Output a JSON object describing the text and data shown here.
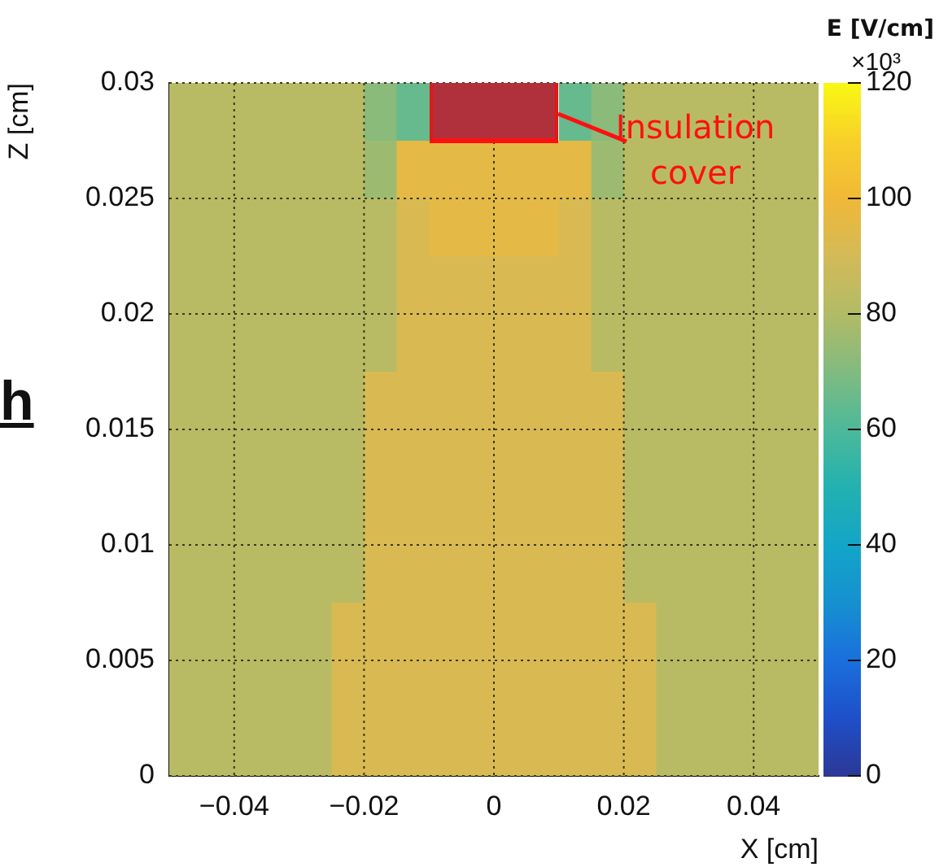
{
  "chart_data": {
    "type": "heatmap",
    "xlabel": "X [cm]",
    "ylabel": "Z [cm]",
    "clabel": "E [V/cm]",
    "x": [
      -0.0475,
      -0.0425,
      -0.0375,
      -0.0325,
      -0.0275,
      -0.0225,
      -0.0175,
      -0.0125,
      -0.0075,
      -0.0025,
      0.0025,
      0.0075,
      0.0125,
      0.0175,
      0.0225,
      0.0275,
      0.0325,
      0.0375,
      0.0425,
      0.0475
    ],
    "y": [
      0.02875,
      0.02625,
      0.02375,
      0.02125,
      0.01875,
      0.01625,
      0.01375,
      0.01125,
      0.00875,
      0.00625,
      0.00375,
      0.00125
    ],
    "cells": [
      [
        82,
        82,
        82,
        82,
        82,
        82,
        72,
        65,
        null,
        null,
        null,
        null,
        65,
        72,
        82,
        82,
        82,
        82,
        82,
        82
      ],
      [
        82,
        82,
        82,
        82,
        82,
        82,
        76,
        96,
        96,
        96,
        96,
        96,
        96,
        76,
        82,
        82,
        82,
        82,
        82,
        82
      ],
      [
        82,
        82,
        82,
        82,
        82,
        82,
        82,
        92,
        96,
        96,
        96,
        96,
        92,
        82,
        82,
        82,
        82,
        82,
        82,
        82
      ],
      [
        82,
        82,
        82,
        82,
        82,
        82,
        82,
        92,
        92,
        92,
        92,
        92,
        92,
        82,
        82,
        82,
        82,
        82,
        82,
        82
      ],
      [
        82,
        82,
        82,
        82,
        82,
        82,
        82,
        92,
        92,
        92,
        92,
        92,
        92,
        82,
        82,
        82,
        82,
        82,
        82,
        82
      ],
      [
        82,
        82,
        82,
        82,
        82,
        82,
        92,
        92,
        92,
        92,
        92,
        92,
        92,
        92,
        82,
        82,
        82,
        82,
        82,
        82
      ],
      [
        82,
        82,
        82,
        82,
        82,
        82,
        92,
        92,
        92,
        92,
        92,
        92,
        92,
        92,
        82,
        82,
        82,
        82,
        82,
        82
      ],
      [
        82,
        82,
        82,
        82,
        82,
        82,
        92,
        92,
        92,
        92,
        92,
        92,
        92,
        92,
        82,
        82,
        82,
        82,
        82,
        82
      ],
      [
        82,
        82,
        82,
        82,
        82,
        82,
        92,
        92,
        92,
        92,
        92,
        92,
        92,
        92,
        82,
        82,
        82,
        82,
        82,
        82
      ],
      [
        82,
        82,
        82,
        82,
        82,
        92,
        92,
        92,
        92,
        92,
        92,
        92,
        92,
        92,
        92,
        82,
        82,
        82,
        82,
        82
      ],
      [
        82,
        82,
        82,
        82,
        82,
        92,
        92,
        92,
        92,
        92,
        92,
        92,
        92,
        92,
        92,
        82,
        82,
        82,
        82,
        82
      ],
      [
        82,
        82,
        82,
        82,
        82,
        92,
        92,
        92,
        92,
        92,
        92,
        92,
        92,
        92,
        92,
        82,
        82,
        82,
        82,
        82
      ]
    ],
    "xlim": [
      -0.05,
      0.05
    ],
    "xticks": [
      {
        "value": -0.04,
        "label": "−0.04"
      },
      {
        "value": -0.02,
        "label": "−0.02"
      },
      0,
      0.02,
      0.04
    ],
    "ylim": [
      0,
      0.03
    ],
    "yticks": [
      0,
      0.005,
      0.01,
      0.015,
      0.02,
      0.025,
      0.03
    ],
    "clim": [
      0,
      120
    ],
    "cticks": [
      0,
      20,
      40,
      60,
      80,
      100,
      120
    ],
    "grid": true,
    "annotations": [
      "Insulation cover",
      "×10³",
      "h"
    ]
  }
}
